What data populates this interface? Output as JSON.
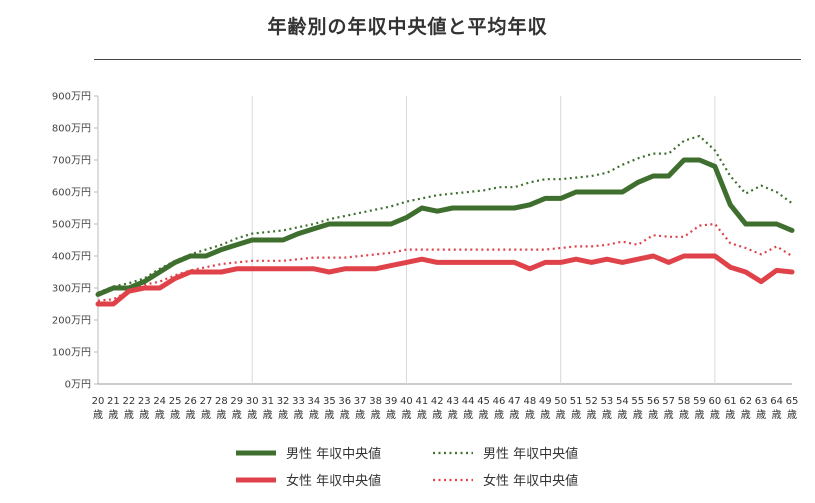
{
  "title": "年齢別の年収中央値と平均年収",
  "chart_data": {
    "type": "line",
    "x": [
      20,
      21,
      22,
      23,
      24,
      25,
      26,
      27,
      28,
      29,
      30,
      31,
      32,
      33,
      34,
      35,
      36,
      37,
      38,
      39,
      40,
      41,
      42,
      43,
      44,
      45,
      46,
      47,
      48,
      49,
      50,
      51,
      52,
      53,
      54,
      55,
      56,
      57,
      58,
      59,
      60,
      61,
      62,
      63,
      64,
      65
    ],
    "x_tick_suffix": "歳",
    "y_ticks": [
      "0万円",
      "100万円",
      "200万円",
      "300万円",
      "400万円",
      "500万円",
      "600万円",
      "700万円",
      "800万円",
      "900万円"
    ],
    "ylim": [
      0,
      900
    ],
    "ystep": 100,
    "grid": "vertical lines every 10 years",
    "legend_position": "bottom",
    "series": [
      {
        "name": "男性 年収中央値",
        "style": "solid",
        "color": "#3f6f2f",
        "values": [
          280,
          300,
          300,
          320,
          350,
          380,
          400,
          400,
          420,
          435,
          450,
          450,
          450,
          470,
          485,
          500,
          500,
          500,
          500,
          500,
          520,
          550,
          540,
          550,
          550,
          550,
          550,
          550,
          560,
          580,
          580,
          600,
          600,
          600,
          600,
          630,
          650,
          650,
          700,
          700,
          680,
          560,
          500,
          500,
          500,
          480
        ]
      },
      {
        "name": "女性 年収中央値",
        "style": "solid",
        "color": "#e0424a",
        "values": [
          250,
          250,
          290,
          300,
          300,
          330,
          350,
          350,
          350,
          360,
          360,
          360,
          360,
          360,
          360,
          350,
          360,
          360,
          360,
          370,
          380,
          390,
          380,
          380,
          380,
          380,
          380,
          380,
          360,
          380,
          380,
          390,
          380,
          390,
          380,
          390,
          400,
          380,
          400,
          400,
          400,
          365,
          350,
          320,
          355,
          350
        ]
      },
      {
        "name": "男性 年収中央値",
        "style": "dotted",
        "color": "#3f6f2f",
        "values": [
          285,
          305,
          315,
          330,
          360,
          385,
          405,
          420,
          435,
          455,
          470,
          475,
          480,
          490,
          500,
          515,
          525,
          535,
          545,
          555,
          570,
          580,
          590,
          595,
          600,
          605,
          615,
          615,
          630,
          640,
          640,
          645,
          650,
          660,
          685,
          705,
          720,
          720,
          760,
          775,
          730,
          650,
          595,
          620,
          600,
          565
        ]
      },
      {
        "name": "女性 年収中央値",
        "style": "dotted",
        "color": "#e0424a",
        "values": [
          260,
          265,
          290,
          310,
          320,
          340,
          355,
          365,
          375,
          380,
          385,
          385,
          385,
          390,
          395,
          395,
          395,
          400,
          405,
          410,
          420,
          420,
          420,
          420,
          420,
          420,
          420,
          420,
          420,
          420,
          425,
          430,
          430,
          435,
          445,
          435,
          465,
          460,
          460,
          495,
          500,
          440,
          425,
          405,
          430,
          400
        ]
      }
    ]
  }
}
